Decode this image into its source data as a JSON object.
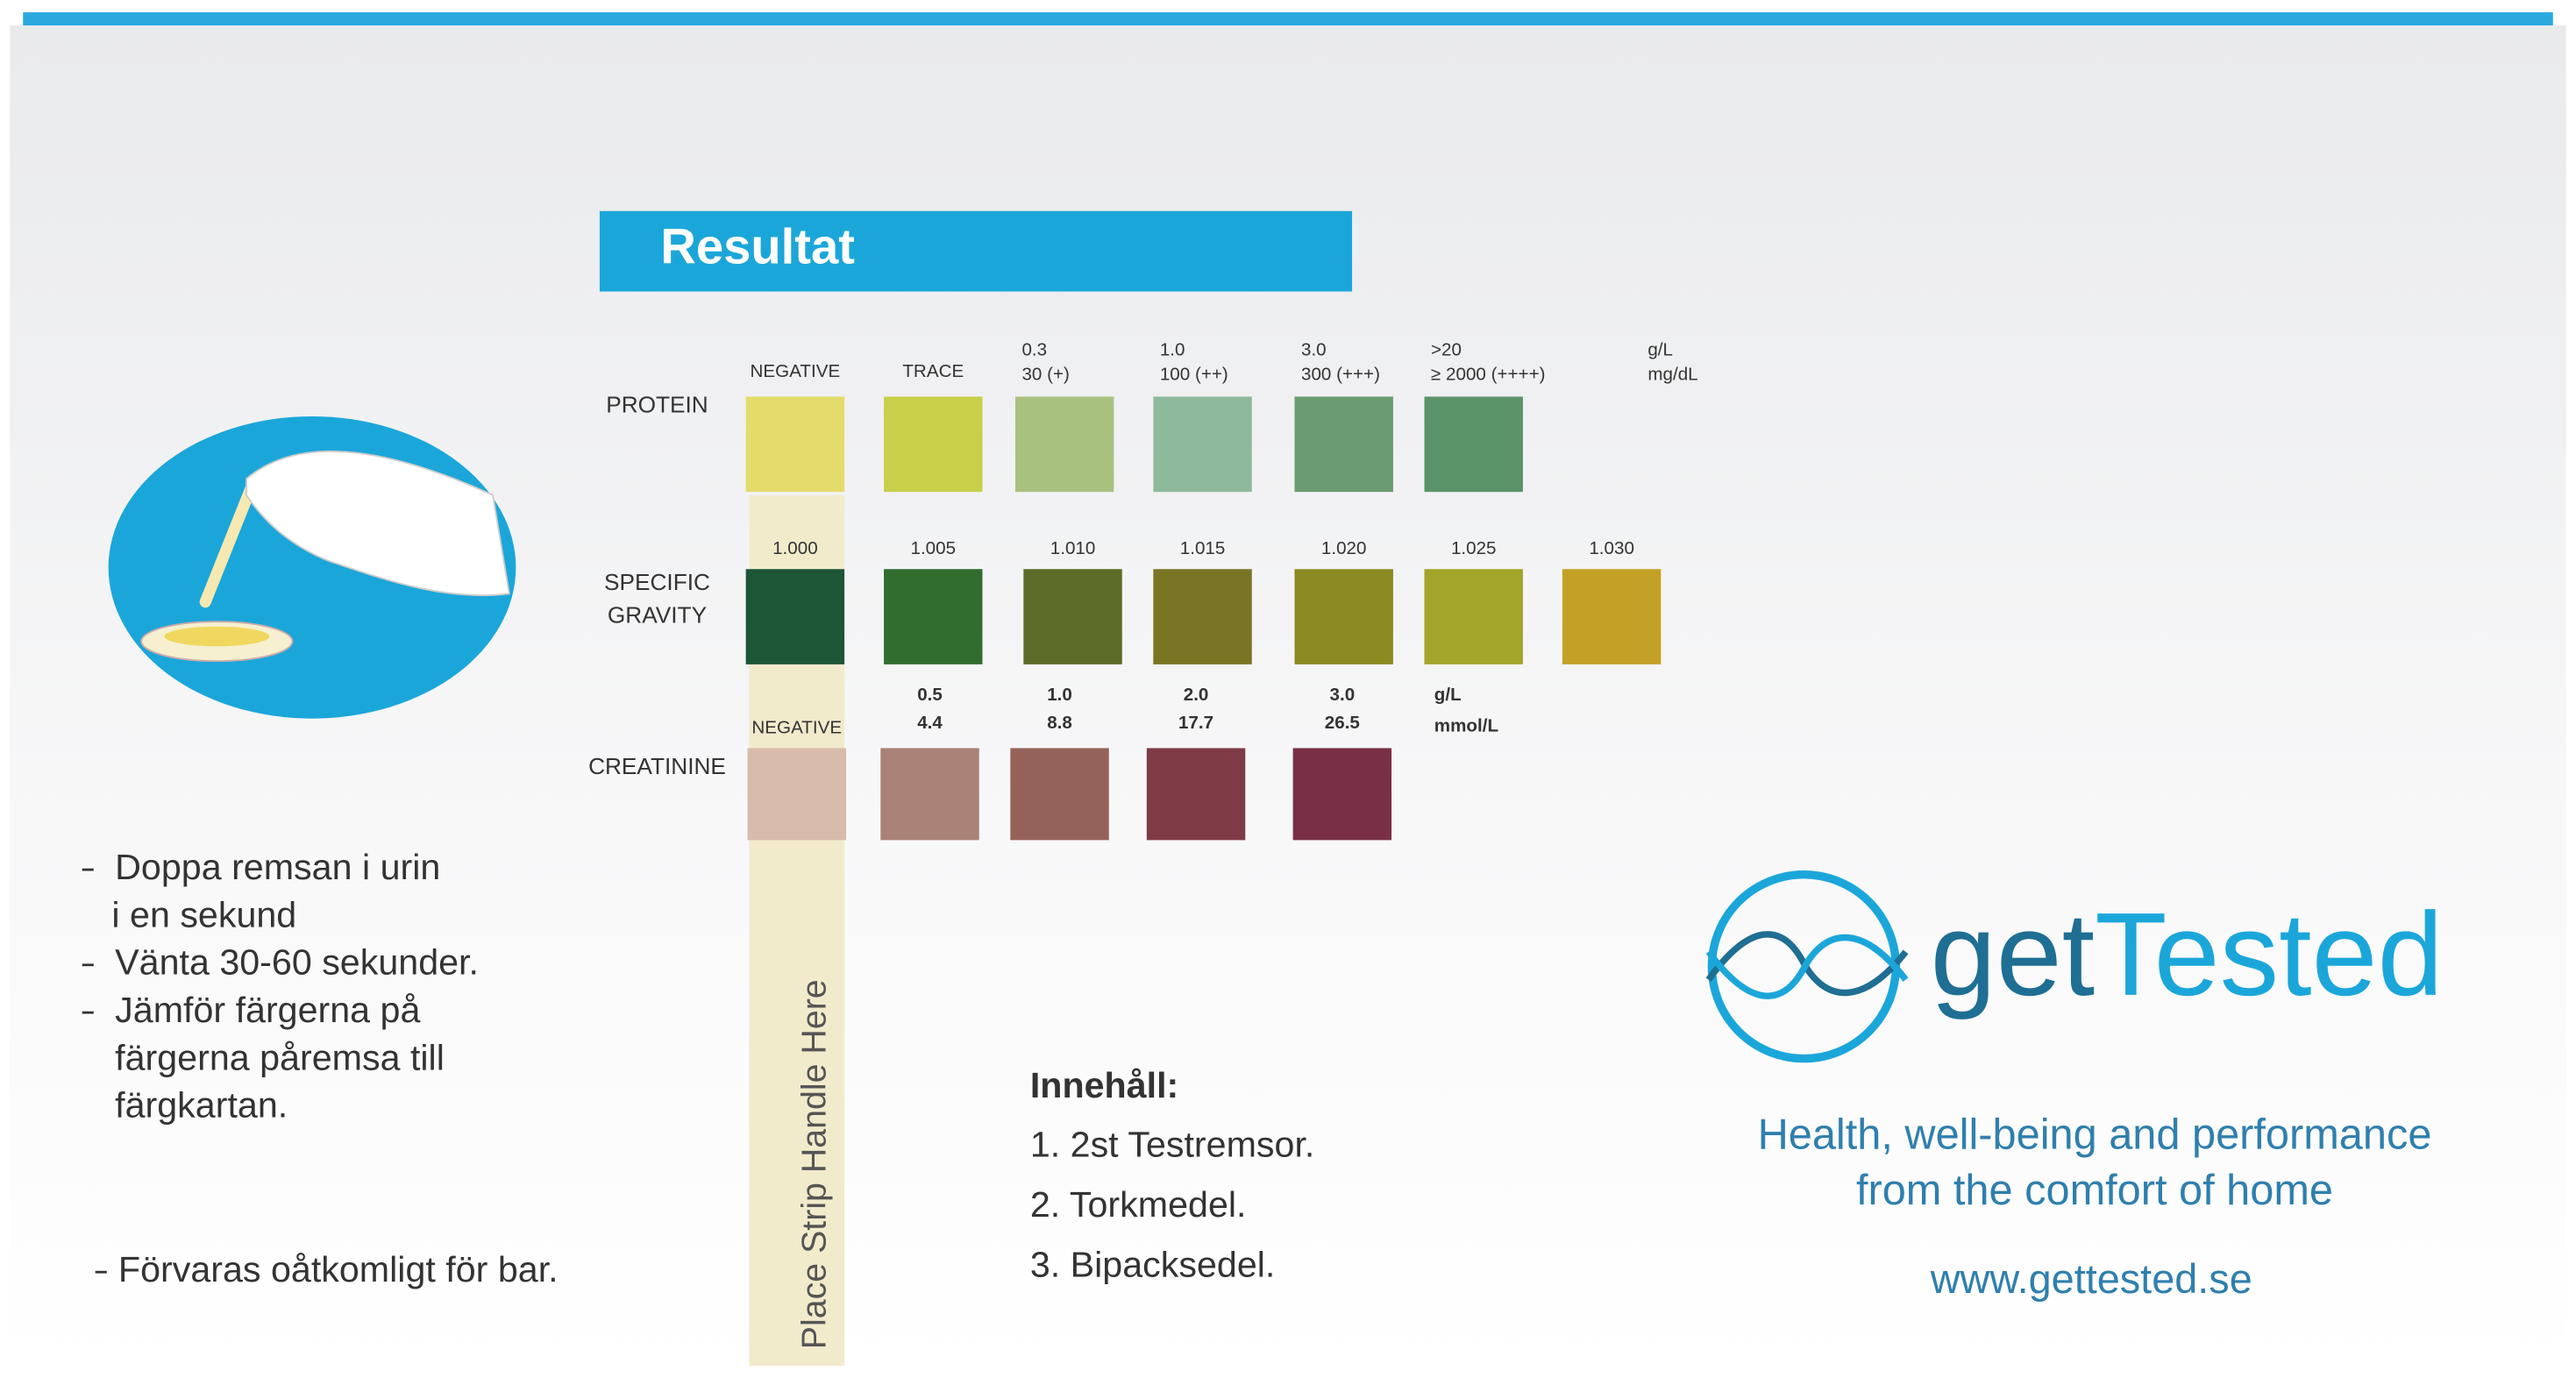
{
  "title": "Resultat",
  "rows": [
    {
      "label": [
        "PROTEIN"
      ],
      "units": [
        "g/L",
        "mg/dL"
      ],
      "swatches": [
        {
          "label": [
            "NEGATIVE"
          ],
          "color": "#e3dc6a"
        },
        {
          "label": [
            "TRACE"
          ],
          "color": "#c8cf48"
        },
        {
          "label": [
            "0.3",
            "30 (+)"
          ],
          "color": "#a9c17f"
        },
        {
          "label": [
            "1.0",
            "100 (++)"
          ],
          "color": "#8fb99b"
        },
        {
          "label": [
            "3.0",
            "300 (+++)"
          ],
          "color": "#6a9b6f"
        },
        {
          "label": [
            ">20",
            "≥ 2000 (++++)"
          ],
          "color": "#5b9369"
        }
      ]
    },
    {
      "label": [
        "SPECIFIC",
        "GRAVITY"
      ],
      "units": [],
      "swatches": [
        {
          "label": [
            "1.000"
          ],
          "color": "#1d5537"
        },
        {
          "label": [
            "1.005"
          ],
          "color": "#326d30"
        },
        {
          "label": [
            "1.010"
          ],
          "color": "#5d6d28"
        },
        {
          "label": [
            "1.015"
          ],
          "color": "#7a7524"
        },
        {
          "label": [
            "1.020"
          ],
          "color": "#8c8a22"
        },
        {
          "label": [
            "1.025"
          ],
          "color": "#a3a42a"
        },
        {
          "label": [
            "1.030"
          ],
          "color": "#c3a126"
        }
      ]
    },
    {
      "label": [
        "CREATININE"
      ],
      "units": [
        "g/L",
        "mmol/L"
      ],
      "swatches": [
        {
          "label": [
            "NEGATIVE"
          ],
          "color": "#d9bbab"
        },
        {
          "label": [
            "0.5",
            "4.4"
          ],
          "color": "#a98175"
        },
        {
          "label": [
            "1.0",
            "8.8"
          ],
          "color": "#95625a"
        },
        {
          "label": [
            "2.0",
            "17.7"
          ],
          "color": "#7e3b45"
        },
        {
          "label": [
            "3.0",
            "26.5"
          ],
          "color": "#793046"
        }
      ]
    }
  ],
  "strip_handle": "Place Strip Handle Here",
  "instructions": [
    [
      "Doppa remsan i urin",
      "i en sekund"
    ],
    [
      "Vänta 30-60 sekunder."
    ],
    [
      "Jämför färgerna på",
      "färgerna påremsa till",
      "färgkartan."
    ]
  ],
  "storage": "Förvaras oåtkomligt för bar.",
  "contents": {
    "heading": "Innehåll:",
    "items": [
      "1. 2st Testremsor.",
      "2. Torkmedel.",
      "3. Bipacksedel."
    ]
  },
  "brand": {
    "parts": [
      "get",
      "Tested"
    ],
    "colors": [
      "#1f6e93",
      "#1ba6da"
    ]
  },
  "tagline": [
    "Health, well-being and performance",
    "from the comfort of home"
  ],
  "url": "www.gettested.se"
}
